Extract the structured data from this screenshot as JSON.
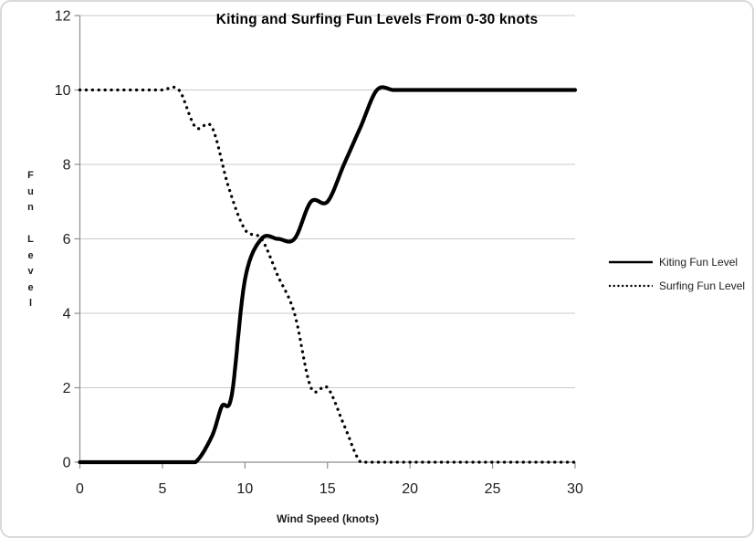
{
  "chart_data": {
    "type": "line",
    "title": "Kiting and Surfing Fun Levels From 0-30 knots",
    "xlabel": "Wind Speed (knots)",
    "ylabel": "Fun Level",
    "xlim": [
      0,
      30
    ],
    "ylim": [
      0,
      12
    ],
    "x_ticks": [
      0,
      5,
      10,
      15,
      20,
      25,
      30
    ],
    "y_ticks": [
      0,
      2,
      4,
      6,
      8,
      10,
      12
    ],
    "grid": true,
    "legend_position": "right",
    "colors": {
      "line": "#000000",
      "grid": "#c9c9c9",
      "axis": "#8e8e8e",
      "text": "#1d1d1d"
    },
    "series": [
      {
        "name": "Kiting Fun Level",
        "style": "solid",
        "color": "#000000",
        "points": [
          [
            0,
            0
          ],
          [
            1,
            0
          ],
          [
            2,
            0
          ],
          [
            3,
            0
          ],
          [
            4,
            0
          ],
          [
            5,
            0
          ],
          [
            6,
            0
          ],
          [
            7,
            0
          ],
          [
            8,
            0.7
          ],
          [
            8.6,
            1.5
          ],
          [
            9.2,
            1.8
          ],
          [
            10,
            4.9
          ],
          [
            11,
            6
          ],
          [
            12,
            6
          ],
          [
            13,
            6
          ],
          [
            14,
            7
          ],
          [
            15,
            7
          ],
          [
            16,
            8
          ],
          [
            17,
            9
          ],
          [
            18,
            10
          ],
          [
            19,
            10
          ],
          [
            20,
            10
          ],
          [
            21,
            10
          ],
          [
            22,
            10
          ],
          [
            23,
            10
          ],
          [
            24,
            10
          ],
          [
            25,
            10
          ],
          [
            26,
            10
          ],
          [
            27,
            10
          ],
          [
            28,
            10
          ],
          [
            29,
            10
          ],
          [
            30,
            10
          ]
        ]
      },
      {
        "name": "Surfing Fun Level",
        "style": "dotted",
        "color": "#000000",
        "points": [
          [
            0,
            10
          ],
          [
            1,
            10
          ],
          [
            2,
            10
          ],
          [
            3,
            10
          ],
          [
            4,
            10
          ],
          [
            5,
            10
          ],
          [
            6,
            10
          ],
          [
            7,
            9
          ],
          [
            8,
            9
          ],
          [
            9,
            7.4
          ],
          [
            10,
            6.25
          ],
          [
            11,
            6
          ],
          [
            12,
            5
          ],
          [
            13,
            4
          ],
          [
            14,
            2
          ],
          [
            15,
            2
          ],
          [
            16,
            1
          ],
          [
            17,
            0
          ],
          [
            18,
            0
          ],
          [
            19,
            0
          ],
          [
            20,
            0
          ],
          [
            21,
            0
          ],
          [
            22,
            0
          ],
          [
            23,
            0
          ],
          [
            24,
            0
          ],
          [
            25,
            0
          ],
          [
            26,
            0
          ],
          [
            27,
            0
          ],
          [
            28,
            0
          ],
          [
            29,
            0
          ],
          [
            30,
            0
          ]
        ]
      }
    ]
  }
}
